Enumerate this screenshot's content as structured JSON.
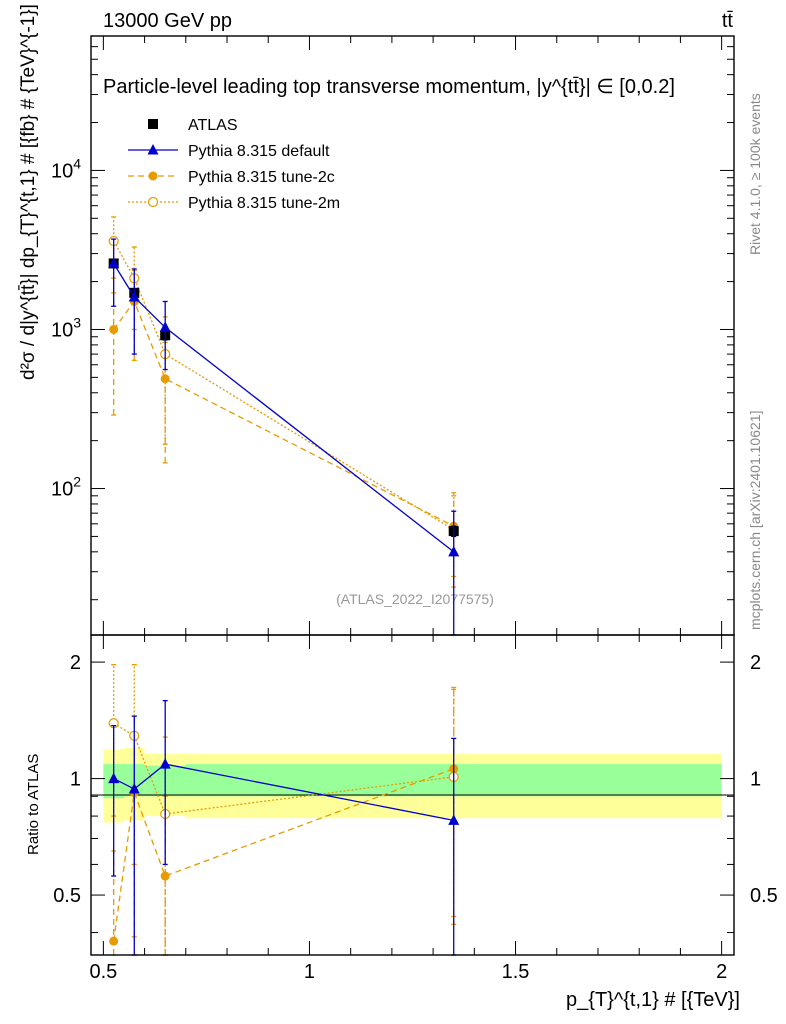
{
  "header": {
    "left": "13000 GeV pp",
    "right": "tt̄",
    "side_top": "Rivet 4.1.0, ≥ 100k events",
    "side_bottom": "mcplots.cern.ch [arXiv:2401.10621]",
    "watermark": "(ATLAS_2022_I2077575)"
  },
  "colors": {
    "atlas": "#000000",
    "default": "#0000cc",
    "tune2c": "#e69b00",
    "tune2m": "#e69b00",
    "band_inner": "#99ff99",
    "band_outer": "#ffff99"
  },
  "chart_data": [
    {
      "type": "scatter",
      "title": "Particle-level leading top transverse momentum, |y^{tt̄}| ∈ [0,0.2]",
      "ylabel": "d²σ / d|y^{tt̄}| dp_{T}^{t,1} [fb TeV⁻¹]",
      "ylabel_display": "d²σ / d|y^{tt̄}| dp_{T}^{t,1} # [{fb} # {TeV}^{-1}]",
      "yscale": "log",
      "xlim": [
        0.47,
        2.03
      ],
      "ylim": [
        12,
        70000
      ],
      "yticks": [
        "10^2",
        "10^3",
        "10^4"
      ],
      "legend": [
        "ATLAS",
        "Pythia 8.315 default",
        "Pythia 8.315 tune-2c",
        "Pythia 8.315 tune-2m"
      ],
      "series": [
        {
          "name": "ATLAS",
          "x": [
            0.525,
            0.575,
            0.65,
            1.35
          ],
          "y": [
            2600,
            1700,
            920,
            54
          ],
          "yerr": [
            [
              2500,
              2700
            ],
            [
              1620,
              1780
            ],
            [
              860,
              980
            ],
            [
              50,
              58
            ]
          ]
        },
        {
          "name": "Pythia 8.315 default",
          "x": [
            0.525,
            0.575,
            0.65,
            1.35
          ],
          "y": [
            2600,
            1600,
            1030,
            40
          ],
          "yerr": [
            [
              1400,
              3700
            ],
            [
              700,
              2400
            ],
            [
              560,
              1500
            ],
            [
              9,
              72
            ]
          ]
        },
        {
          "name": "Pythia 8.315 tune-2c",
          "x": [
            0.525,
            0.575,
            0.65,
            1.35
          ],
          "y": [
            1000,
            1500,
            490,
            58
          ],
          "yerr": [
            [
              290,
              1700
            ],
            [
              640,
              2350
            ],
            [
              145,
              830
            ],
            [
              28,
              90
            ]
          ]
        },
        {
          "name": "Pythia 8.315 tune-2m",
          "x": [
            0.525,
            0.575,
            0.65,
            1.35
          ],
          "y": [
            3600,
            2100,
            700,
            55
          ],
          "yerr": [
            [
              2100,
              5100
            ],
            [
              1000,
              3300
            ],
            [
              190,
              1200
            ],
            [
              24,
              94
            ]
          ]
        }
      ]
    },
    {
      "type": "scatter",
      "title": "",
      "xlabel": "p_{T}^{t,1} [TeV]",
      "xlabel_display": "p_{T}^{t,1} # [{TeV}]",
      "ylabel": "Ratio to ATLAS",
      "xlim": [
        0.47,
        2.03
      ],
      "ylim": [
        0.35,
        2.35
      ],
      "xticks": [
        0.5,
        1,
        1.5,
        2
      ],
      "xtick_labels": [
        "0.5",
        "1",
        "1.5",
        "2"
      ],
      "yticks": [
        0.5,
        1,
        2
      ],
      "ytick_labels": [
        "0.5",
        "1",
        "2"
      ],
      "bands": {
        "x_edges": [
          0.5,
          0.55,
          0.6,
          0.7,
          2.0
        ],
        "inner": [
          [
            0.89,
            1.09
          ],
          [
            0.9,
            1.09
          ],
          [
            0.9,
            1.08
          ],
          [
            0.9,
            1.09
          ]
        ],
        "outer": [
          [
            0.77,
            1.19
          ],
          [
            0.78,
            1.2
          ],
          [
            0.8,
            1.16
          ],
          [
            0.79,
            1.16
          ]
        ]
      },
      "series": [
        {
          "name": "Pythia 8.315 default",
          "x": [
            0.525,
            0.575,
            0.65,
            1.35
          ],
          "y": [
            1.0,
            0.94,
            1.09,
            0.78
          ],
          "yerr": [
            [
              0.56,
              1.37
            ],
            [
              0.35,
              1.45
            ],
            [
              0.6,
              1.59
            ],
            [
              0.16,
              1.27
            ]
          ]
        },
        {
          "name": "Pythia 8.315 tune-2c",
          "x": [
            0.525,
            0.575,
            0.65,
            1.35
          ],
          "y": [
            0.38,
            0.92,
            0.56,
            1.06
          ],
          "yerr": [
            [
              0.11,
              0.65
            ],
            [
              0.39,
              1.45
            ],
            [
              0.15,
              0.9
            ],
            [
              0.42,
              1.7
            ]
          ]
        },
        {
          "name": "Pythia 8.315 tune-2m",
          "x": [
            0.525,
            0.575,
            0.65,
            1.35
          ],
          "y": [
            1.39,
            1.29,
            0.81,
            1.01
          ],
          "yerr": [
            [
              0.8,
              1.97
            ],
            [
              0.6,
              1.97
            ],
            [
              0.2,
              1.28
            ],
            [
              0.44,
              1.72
            ]
          ]
        }
      ]
    }
  ]
}
